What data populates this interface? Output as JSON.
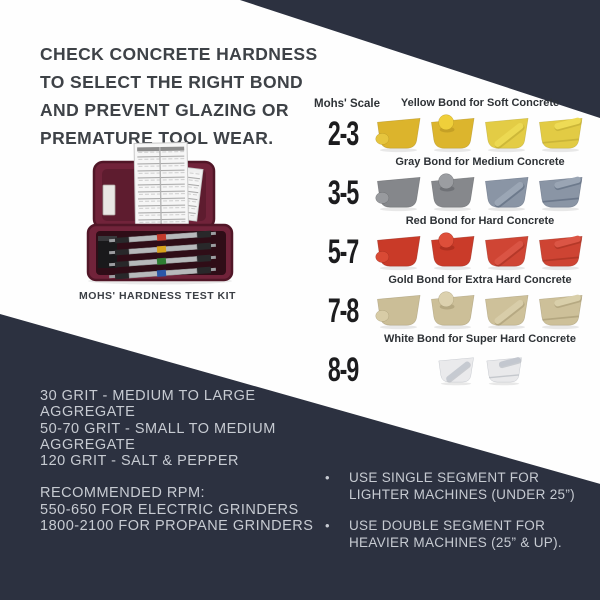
{
  "colors": {
    "dark_panel": "#2c3140",
    "light_text": "#c7cbd2",
    "headline_text": "#3e4247",
    "header_text": "#2e3236",
    "kit_case": "#71233a"
  },
  "headline": {
    "lines": [
      "CHECK CONCRETE HARDNESS",
      "TO SELECT THE RIGHT BOND",
      "AND PREVENT GLAZING OR",
      "PREMATURE TOOL WEAR."
    ]
  },
  "kit": {
    "caption": "MOHS' HARDNESS TEST KIT"
  },
  "scale": {
    "label": "Mohs' Scale",
    "rows": [
      {
        "range": "2-3",
        "header": "Yellow Bond for Soft Concrete",
        "small": false,
        "tools": [
          {
            "variant": "round-front",
            "name": "single-round-segment",
            "body": "#dcb42c",
            "segment": "#e6c53e",
            "shade": "#a8871c"
          },
          {
            "variant": "round-top",
            "name": "round-top-segment",
            "body": "#dcb52d",
            "segment": "#efcf3a",
            "shade": "#a8871c"
          },
          {
            "variant": "bar-diagonal",
            "name": "single-bar-segment",
            "body": "#e3cc45",
            "segment": "#ecd952",
            "shade": "#b3a02c"
          },
          {
            "variant": "bar-top",
            "name": "double-bar-segment",
            "body": "#e2cb44",
            "segment": "#eedb55",
            "shade": "#b3a02c"
          }
        ]
      },
      {
        "range": "3-5",
        "header": "Gray Bond for Medium Concrete",
        "small": false,
        "tools": [
          {
            "variant": "round-front",
            "name": "single-round-segment",
            "body": "#85878b",
            "segment": "#989a9e",
            "shade": "#55575b"
          },
          {
            "variant": "round-top",
            "name": "round-top-segment",
            "body": "#86888c",
            "segment": "#9b9da1",
            "shade": "#55575b"
          },
          {
            "variant": "bar-diagonal",
            "name": "single-bar-segment",
            "body": "#8a95a5",
            "segment": "#9ba6b5",
            "shade": "#4c5a70"
          },
          {
            "variant": "bar-top",
            "name": "double-bar-segment",
            "body": "#8a95a5",
            "segment": "#9aa5b4",
            "shade": "#4c5a70"
          }
        ]
      },
      {
        "range": "5-7",
        "header": "Red Bond for Hard Concrete",
        "small": false,
        "tools": [
          {
            "variant": "round-front",
            "name": "single-round-segment",
            "body": "#c93a28",
            "segment": "#d94a35",
            "shade": "#8e2317"
          },
          {
            "variant": "round-top",
            "name": "round-top-segment",
            "body": "#ca3b29",
            "segment": "#de4f3a",
            "shade": "#8e2317"
          },
          {
            "variant": "bar-diagonal",
            "name": "single-bar-segment",
            "body": "#cf4534",
            "segment": "#da5444",
            "shade": "#962a1c"
          },
          {
            "variant": "bar-top",
            "name": "double-bar-segment",
            "body": "#ce4433",
            "segment": "#db5545",
            "shade": "#962a1c"
          }
        ]
      },
      {
        "range": "7-8",
        "header": "Gold Bond for Extra Hard Concrete",
        "small": false,
        "tools": [
          {
            "variant": "round-front",
            "name": "single-round-segment",
            "body": "#cbbe97",
            "segment": "#d8cca6",
            "shade": "#998c66"
          },
          {
            "variant": "round-top",
            "name": "round-top-segment",
            "body": "#ccbf98",
            "segment": "#dcd1ae",
            "shade": "#998c66"
          },
          {
            "variant": "bar-diagonal",
            "name": "single-bar-segment",
            "body": "#cec19a",
            "segment": "#d8cda9",
            "shade": "#9b8e68"
          },
          {
            "variant": "bar-top",
            "name": "double-bar-segment",
            "body": "#cdc099",
            "segment": "#d9cfaa",
            "shade": "#9b8e68"
          }
        ]
      },
      {
        "range": "8-9",
        "header": "White Bond for Super Hard Concrete",
        "small": true,
        "tools": [
          {
            "variant": "bar-diagonal",
            "name": "single-bar-segment",
            "body": "#eaeaec",
            "segment": "#c6cad1",
            "shade": "#a2a7b0"
          },
          {
            "variant": "bar-top",
            "name": "double-bar-segment",
            "body": "#e9e9eb",
            "segment": "#c3c7cf",
            "shade": "#a2a7b0"
          }
        ]
      }
    ]
  },
  "grit": {
    "lines": [
      "30 GRIT - MEDIUM TO LARGE",
      "AGGREGATE",
      "50-70 GRIT - SMALL TO MEDIUM",
      "AGGREGATE",
      "120 GRIT - SALT & PEPPER"
    ]
  },
  "rpm": {
    "lines": [
      "RECOMMENDED RPM:",
      "550-650 FOR ELECTRIC GRINDERS",
      "1800-2100 FOR PROPANE GRINDERS"
    ]
  },
  "bullets": [
    {
      "marker": "•",
      "lines": [
        "USE SINGLE SEGMENT FOR",
        "LIGHTER MACHINES (UNDER 25”)"
      ]
    },
    {
      "marker": "•",
      "lines": [
        "USE DOUBLE SEGMENT FOR",
        "HEAVIER MACHINES (25” & UP)."
      ]
    }
  ]
}
